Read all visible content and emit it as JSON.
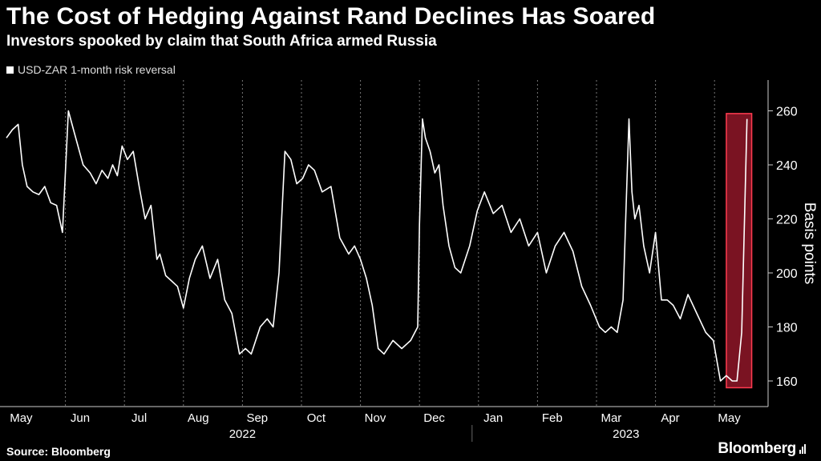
{
  "header": {
    "title": "The Cost of Hedging Against Rand Declines Has Soared",
    "subtitle": "Investors spooked by claim that South Africa armed Russia"
  },
  "legend": {
    "label": "USD-ZAR 1-month risk reversal"
  },
  "footer": {
    "source": "Source: Bloomberg",
    "brand": "Bloomberg"
  },
  "colors": {
    "background": "#000000",
    "line": "#ffffff",
    "highlight_fill": "#a3192e",
    "highlight_stroke": "#ff3b50"
  },
  "chart_data": {
    "type": "line",
    "title": "The Cost of Hedging Against Rand Declines Has Soared",
    "subtitle": "Investors spooked by claim that South Africa armed Russia",
    "ylabel": "Basis points",
    "ylim": [
      155,
      270
    ],
    "yticks": [
      160,
      180,
      200,
      220,
      240,
      260
    ],
    "y_axis_position": "right",
    "grid": "vertical dashed at month boundaries",
    "xlim": [
      0,
      12.7
    ],
    "x_unit": "months since start of May 2022",
    "month_labels": [
      "May",
      "Jun",
      "Jul",
      "Aug",
      "Sep",
      "Oct",
      "Nov",
      "Dec",
      "Jan",
      "Feb",
      "Mar",
      "Apr",
      "May"
    ],
    "year_labels": [
      {
        "label": "2022",
        "center_x": 4.0
      },
      {
        "label": "2023",
        "center_x": 10.5
      }
    ],
    "highlight": {
      "x_start": 12.2,
      "x_end": 12.63,
      "y_start": 157.5,
      "y_end": 259
    },
    "series": [
      {
        "name": "USD-ZAR 1-month risk reversal",
        "x": [
          0,
          0.1,
          0.2,
          0.27,
          0.35,
          0.45,
          0.55,
          0.65,
          0.75,
          0.85,
          0.95,
          1.05,
          1.15,
          1.3,
          1.42,
          1.52,
          1.62,
          1.72,
          1.8,
          1.88,
          1.96,
          2.05,
          2.15,
          2.25,
          2.35,
          2.45,
          2.55,
          2.6,
          2.7,
          2.8,
          2.9,
          3.0,
          3.1,
          3.2,
          3.32,
          3.45,
          3.58,
          3.7,
          3.82,
          3.95,
          4.05,
          4.15,
          4.3,
          4.42,
          4.52,
          4.62,
          4.72,
          4.82,
          4.92,
          5.02,
          5.12,
          5.22,
          5.35,
          5.5,
          5.65,
          5.8,
          5.9,
          6.0,
          6.1,
          6.2,
          6.3,
          6.4,
          6.55,
          6.7,
          6.85,
          6.97,
          7.0,
          7.05,
          7.1,
          7.18,
          7.26,
          7.33,
          7.4,
          7.5,
          7.6,
          7.7,
          7.85,
          7.98,
          8.1,
          8.25,
          8.4,
          8.55,
          8.7,
          8.85,
          9.0,
          9.15,
          9.3,
          9.45,
          9.6,
          9.75,
          9.9,
          10.05,
          10.15,
          10.25,
          10.35,
          10.45,
          10.55,
          10.6,
          10.65,
          10.72,
          10.8,
          10.9,
          11.0,
          11.1,
          11.2,
          11.3,
          11.42,
          11.55,
          11.7,
          11.85,
          11.98,
          12.1,
          12.2,
          12.3,
          12.38,
          12.46,
          12.55
        ],
        "values": [
          250,
          253,
          255,
          240,
          232,
          230,
          229,
          232,
          226,
          225,
          215,
          260,
          252,
          240,
          237,
          233,
          238,
          235,
          240,
          236,
          247,
          242,
          245,
          232,
          220,
          225,
          205,
          207,
          199,
          197,
          195,
          187,
          198,
          205,
          210,
          198,
          205,
          190,
          185,
          170,
          172,
          170,
          180,
          183,
          180,
          200,
          245,
          242,
          233,
          235,
          240,
          238,
          230,
          232,
          213,
          207,
          210,
          205,
          198,
          188,
          172,
          170,
          175,
          172,
          175,
          180,
          218,
          257,
          250,
          245,
          237,
          240,
          225,
          210,
          202,
          200,
          210,
          223,
          230,
          222,
          225,
          215,
          220,
          210,
          215,
          200,
          210,
          215,
          208,
          195,
          188,
          180,
          178,
          180,
          178,
          190,
          257,
          230,
          220,
          225,
          210,
          200,
          215,
          190,
          190,
          188,
          183,
          192,
          185,
          178,
          175,
          160,
          162,
          160,
          160,
          178,
          257
        ]
      }
    ]
  }
}
